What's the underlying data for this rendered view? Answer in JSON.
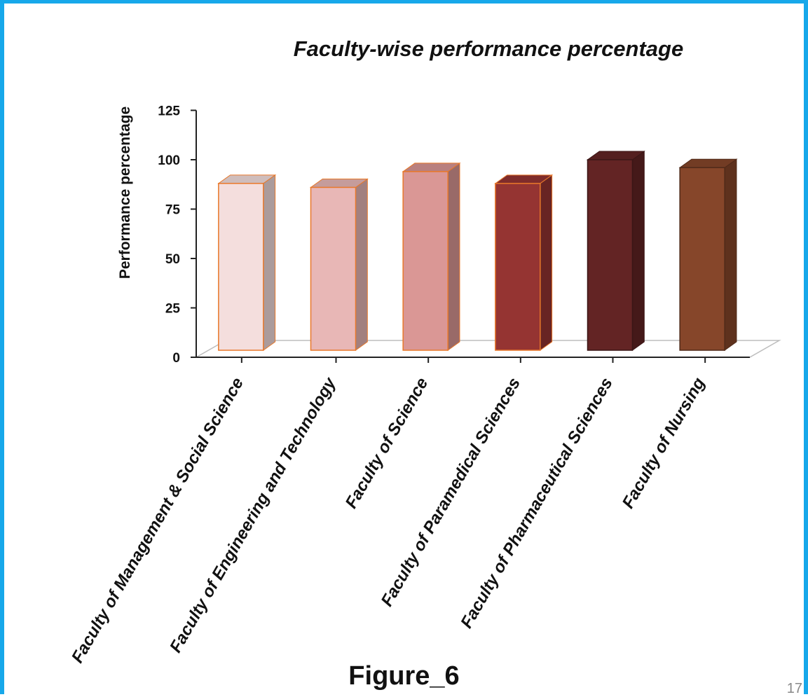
{
  "figure_label": "Figure_6",
  "page_number": "17",
  "colors": {
    "frame": "#17a8ea",
    "bar_outline": "#e8782a"
  },
  "chart_data": {
    "type": "bar",
    "title": "Faculty-wise performance percentage",
    "xlabel": "",
    "ylabel": "Performance percentage",
    "ylim": [
      0,
      125
    ],
    "yticks": [
      0,
      25,
      50,
      75,
      100,
      125
    ],
    "grid": false,
    "legend": "none",
    "three_d": true,
    "categories": [
      "Faculty of Management & Social Science",
      "Faculty of Engineering and Technology",
      "Faculty of Science",
      "Faculty of Paramedical Sciences",
      "Faculty of Pharmaceutical Sciences",
      "Faculty of Nursing"
    ],
    "values": [
      88,
      86,
      94,
      88,
      100,
      96
    ],
    "bar_colors": [
      "#f4dedd",
      "#e8b7b6",
      "#da9795",
      "#953432",
      "#632424",
      "#86462a"
    ]
  }
}
